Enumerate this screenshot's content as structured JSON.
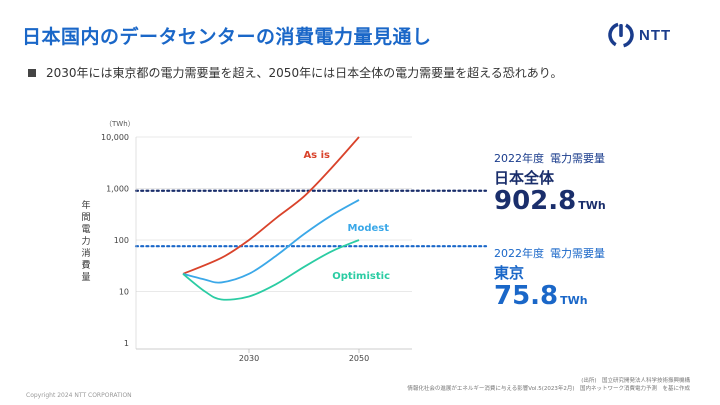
{
  "header": {
    "title": "日本国内のデータセンターの消費電力量見通し",
    "logo_text": "NTT"
  },
  "subtitle": "2030年には東京都の電力需要量を超え、2050年には日本全体の電力需要量を超える恐れあり。",
  "chart_data": {
    "type": "line",
    "y_scale": "log",
    "y_unit": "（TWh）",
    "ylabel": "年間電力消費量",
    "ylim": [
      1,
      10000
    ],
    "y_ticks": [
      "10,000",
      "1,000",
      "100",
      "10",
      "1"
    ],
    "x_ticks": [
      "2030",
      "2050"
    ],
    "xlim": [
      2010,
      2060
    ],
    "series": [
      {
        "name": "As is",
        "color": "#d9432b",
        "x": [
          2018,
          2025,
          2030,
          2035,
          2040,
          2045,
          2050
        ],
        "y": [
          22,
          45,
          100,
          270,
          700,
          2500,
          10000
        ]
      },
      {
        "name": "Modest",
        "color": "#3ba8e8",
        "x": [
          2018,
          2022,
          2025,
          2030,
          2035,
          2040,
          2045,
          2050
        ],
        "y": [
          22,
          17,
          15,
          22,
          50,
          130,
          300,
          600
        ]
      },
      {
        "name": "Optimistic",
        "color": "#2bcca3",
        "x": [
          2018,
          2022,
          2025,
          2030,
          2035,
          2040,
          2045,
          2050
        ],
        "y": [
          22,
          10,
          7,
          8,
          14,
          30,
          60,
          100
        ]
      }
    ],
    "reference_lines": [
      {
        "value": 902.8,
        "color": "#1a2e6b"
      },
      {
        "value": 75.8,
        "color": "#1a67c8"
      }
    ]
  },
  "callouts": [
    {
      "caption_year": "2022年度",
      "caption_label": "電力需要量",
      "name": "日本全体",
      "value": "902.8",
      "unit": "TWh"
    },
    {
      "caption_year": "2022年度",
      "caption_label": "電力需要量",
      "name": "東京",
      "value": "75.8",
      "unit": "TWh"
    }
  ],
  "footer": {
    "copyright": "Copyright 2024 NTT CORPORATION",
    "source_line1": "(出所)　国立研究開発法人科学技術振興機構",
    "source_line2": "情報化社会の進展がエネルギー消費に与える影響Vol.5(2023年2月)　国内ネットワーク消費電力予測　を基に作成"
  }
}
